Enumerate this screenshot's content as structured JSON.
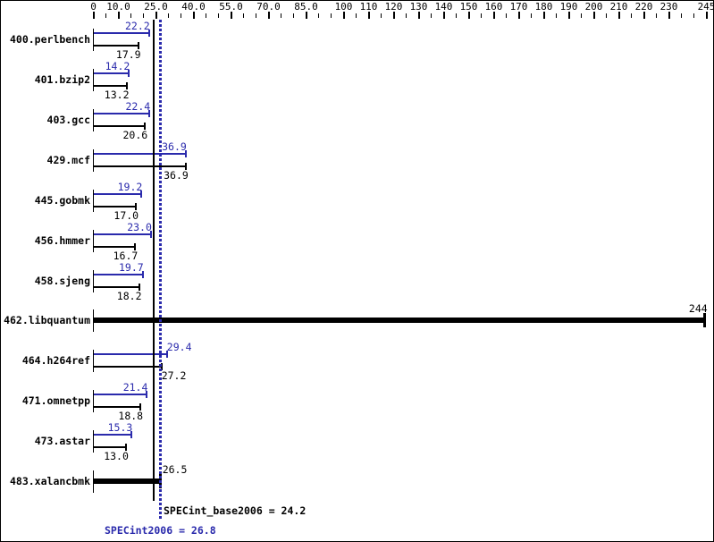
{
  "colors": {
    "peak": "#2a2aac",
    "base": "#000000",
    "background": "#ffffff",
    "border": "#000000"
  },
  "chart_data": {
    "type": "bar",
    "orientation": "horizontal",
    "title": "",
    "xlabel": "",
    "ylabel": "",
    "grid": false,
    "axis": {
      "min": 0,
      "max": 245,
      "minor_tick_step": 5,
      "major_ticks": [
        0,
        10,
        25,
        40,
        55,
        70,
        85,
        100,
        110,
        120,
        130,
        140,
        150,
        160,
        170,
        180,
        190,
        200,
        210,
        220,
        230,
        245
      ],
      "major_tick_labels": [
        "0",
        "10.0",
        "25.0",
        "40.0",
        "55.0",
        "70.0",
        "85.0",
        "100",
        "110",
        "120",
        "130",
        "140",
        "150",
        "160",
        "170",
        "180",
        "190",
        "200",
        "210",
        "220",
        "230",
        "245"
      ]
    },
    "series_legend": [
      {
        "name": "SPECint2006 (peak)",
        "color": "#2a2aac"
      },
      {
        "name": "SPECint_base2006 (base)",
        "color": "#000000"
      }
    ],
    "benchmarks": [
      {
        "name": "400.perlbench",
        "peak": 22.2,
        "base": 17.9,
        "peak_label": "22.2",
        "base_label": "17.9"
      },
      {
        "name": "401.bzip2",
        "peak": 14.2,
        "base": 13.2,
        "peak_label": "14.2",
        "base_label": "13.2"
      },
      {
        "name": "403.gcc",
        "peak": 22.4,
        "base": 20.6,
        "peak_label": "22.4",
        "base_label": "20.6"
      },
      {
        "name": "429.mcf",
        "peak": 36.9,
        "base": 36.9,
        "peak_label": "36.9",
        "base_label": "36.9"
      },
      {
        "name": "445.gobmk",
        "peak": 19.2,
        "base": 17.0,
        "peak_label": "19.2",
        "base_label": "17.0"
      },
      {
        "name": "456.hmmer",
        "peak": 23.0,
        "base": 16.7,
        "peak_label": "23.0",
        "base_label": "16.7"
      },
      {
        "name": "458.sjeng",
        "peak": 19.7,
        "base": 18.2,
        "peak_label": "19.7",
        "base_label": "18.2"
      },
      {
        "name": "462.libquantum",
        "merged": 244,
        "merged_label": "244"
      },
      {
        "name": "464.h264ref",
        "peak": 29.4,
        "base": 27.2,
        "peak_label": "29.4",
        "base_label": "27.2",
        "label_after_end": true
      },
      {
        "name": "471.omnetpp",
        "peak": 21.4,
        "base": 18.8,
        "peak_label": "21.4",
        "base_label": "18.8"
      },
      {
        "name": "473.astar",
        "peak": 15.3,
        "base": 13.0,
        "peak_label": "15.3",
        "base_label": "13.0"
      },
      {
        "name": "483.xalancbmk",
        "merged": 26.5,
        "merged_label": "26.5",
        "label_after_end": true
      }
    ],
    "reference_lines": [
      {
        "value": 24.2,
        "style": "solid",
        "color": "#000000",
        "metric": "SPECint_base2006"
      },
      {
        "value": 26.8,
        "style": "dotted",
        "color": "#2a2aac",
        "metric": "SPECint2006"
      }
    ],
    "summary": {
      "base_text": "SPECint_base2006 = 24.2",
      "peak_text": "SPECint2006 = 26.8",
      "base_value": 24.2,
      "peak_value": 26.8
    }
  }
}
